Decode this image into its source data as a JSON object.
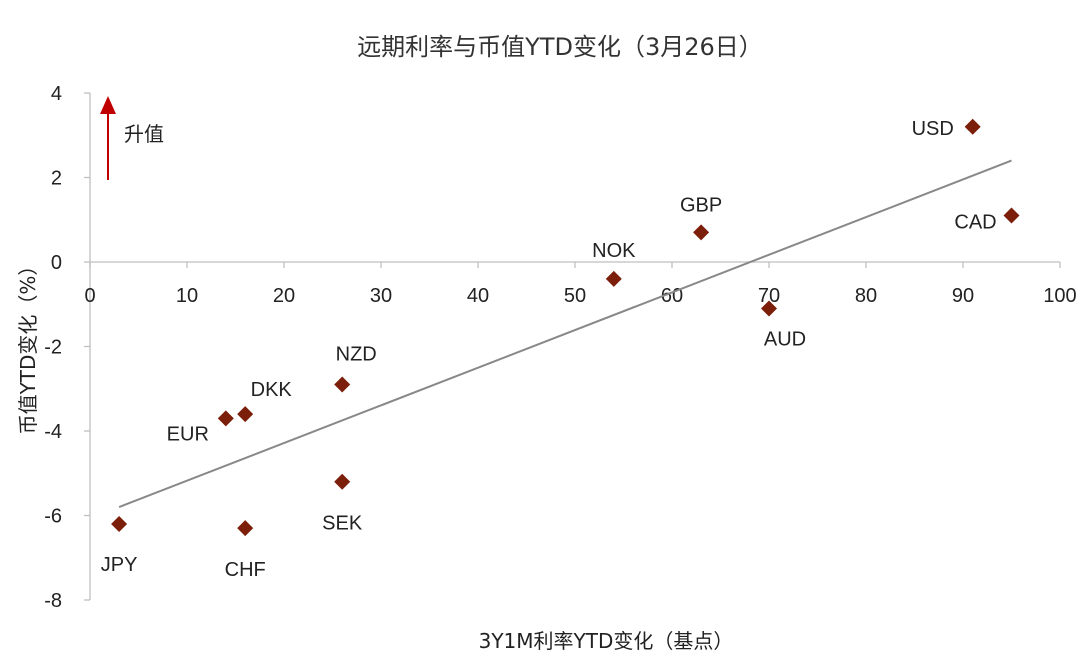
{
  "chart_data": {
    "type": "scatter",
    "title": "远期利率与币值YTD变化（3月26日）",
    "xlabel": "3Y1M利率YTD变化（基点）",
    "ylabel": "币值YTD变化（%）",
    "xlim": [
      0,
      100
    ],
    "ylim": [
      -8,
      4
    ],
    "x_ticks": [
      0,
      10,
      20,
      30,
      40,
      50,
      60,
      70,
      80,
      90,
      100
    ],
    "y_ticks": [
      4,
      2,
      0,
      -2,
      -4,
      -6,
      -8
    ],
    "grid": false,
    "points": [
      {
        "label": "USD",
        "x": 91,
        "y": 3.2
      },
      {
        "label": "CAD",
        "x": 95,
        "y": 1.1
      },
      {
        "label": "GBP",
        "x": 63,
        "y": 0.7
      },
      {
        "label": "NOK",
        "x": 54,
        "y": -0.4
      },
      {
        "label": "AUD",
        "x": 70,
        "y": -1.1
      },
      {
        "label": "NZD",
        "x": 26,
        "y": -2.9
      },
      {
        "label": "DKK",
        "x": 16,
        "y": -3.6
      },
      {
        "label": "EUR",
        "x": 14,
        "y": -3.7
      },
      {
        "label": "SEK",
        "x": 26,
        "y": -5.2
      },
      {
        "label": "JPY",
        "x": 3,
        "y": -6.2
      },
      {
        "label": "CHF",
        "x": 16,
        "y": -6.3
      }
    ],
    "trendline": {
      "x": [
        3,
        95
      ],
      "y": [
        -5.8,
        2.4
      ]
    },
    "annotation": "升值",
    "colors": {
      "marker": "#7B1E0A",
      "trendline": "#888888",
      "arrow": "#C00000",
      "axis": "#BFBFBF"
    }
  }
}
